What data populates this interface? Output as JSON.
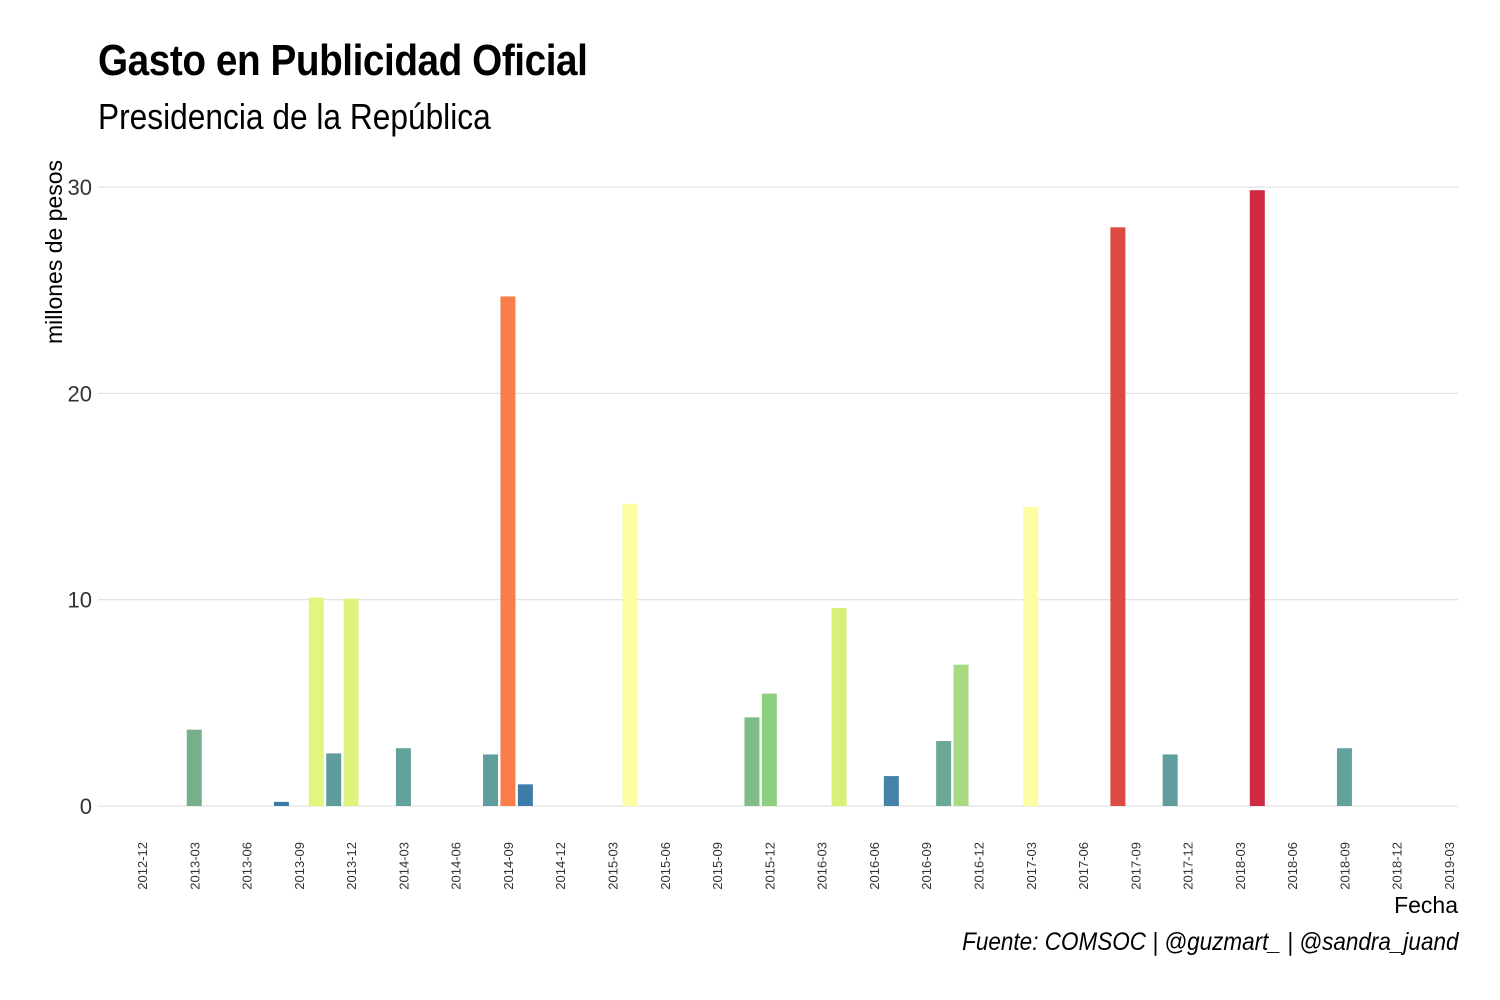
{
  "chart_data": {
    "type": "bar",
    "title": "Gasto en Publicidad Oficial",
    "subtitle": "Presidencia de la República",
    "caption": "Fuente: COMSOC | @guzmart_ | @sandra_juand",
    "xlabel": "Fecha",
    "ylabel": "millones de pesos",
    "ylim": [
      0,
      31.3
    ],
    "yticks": [
      0,
      10,
      20,
      30
    ],
    "xlim": [
      "2012-12",
      "2019-03"
    ],
    "xtick_labels": [
      "2012-12",
      "2013-03",
      "2013-06",
      "2013-09",
      "2013-12",
      "2014-03",
      "2014-06",
      "2014-09",
      "2014-12",
      "2015-03",
      "2015-06",
      "2015-09",
      "2015-12",
      "2016-03",
      "2016-06",
      "2016-09",
      "2016-12",
      "2017-03",
      "2017-06",
      "2017-09",
      "2017-12",
      "2018-03",
      "2018-06",
      "2018-09",
      "2018-12",
      "2019-03"
    ],
    "grid": "horizontal",
    "bars": [
      {
        "date": "2013-03",
        "value": 3.7,
        "color": "#76b08a"
      },
      {
        "date": "2013-08",
        "value": 0.2,
        "color": "#3a7ba8"
      },
      {
        "date": "2013-10",
        "value": 10.1,
        "color": "#e2f57e"
      },
      {
        "date": "2013-11",
        "value": 2.55,
        "color": "#5f9c9c"
      },
      {
        "date": "2013-12",
        "value": 10.05,
        "color": "#dff27e"
      },
      {
        "date": "2014-03",
        "value": 2.8,
        "color": "#62a29d"
      },
      {
        "date": "2014-08",
        "value": 2.5,
        "color": "#5f9d9e"
      },
      {
        "date": "2014-09",
        "value": 24.7,
        "color": "#fa7d4c"
      },
      {
        "date": "2014-10",
        "value": 1.05,
        "color": "#3d7ba8"
      },
      {
        "date": "2015-04",
        "value": 14.65,
        "color": "#fdfda3"
      },
      {
        "date": "2015-11",
        "value": 4.3,
        "color": "#80bd86"
      },
      {
        "date": "2015-12",
        "value": 5.45,
        "color": "#8ccf7e"
      },
      {
        "date": "2016-04",
        "value": 9.6,
        "color": "#d8ef78"
      },
      {
        "date": "2016-07",
        "value": 1.45,
        "color": "#4482a8"
      },
      {
        "date": "2016-10",
        "value": 3.15,
        "color": "#6aa996"
      },
      {
        "date": "2016-11",
        "value": 6.85,
        "color": "#a8d983"
      },
      {
        "date": "2017-03",
        "value": 14.5,
        "color": "#fdfda3"
      },
      {
        "date": "2017-08",
        "value": 28.05,
        "color": "#dd4a43"
      },
      {
        "date": "2017-11",
        "value": 2.5,
        "color": "#5f9d9e"
      },
      {
        "date": "2018-04",
        "value": 29.85,
        "color": "#cf2a44"
      },
      {
        "date": "2018-09",
        "value": 2.8,
        "color": "#62a29d"
      }
    ]
  }
}
